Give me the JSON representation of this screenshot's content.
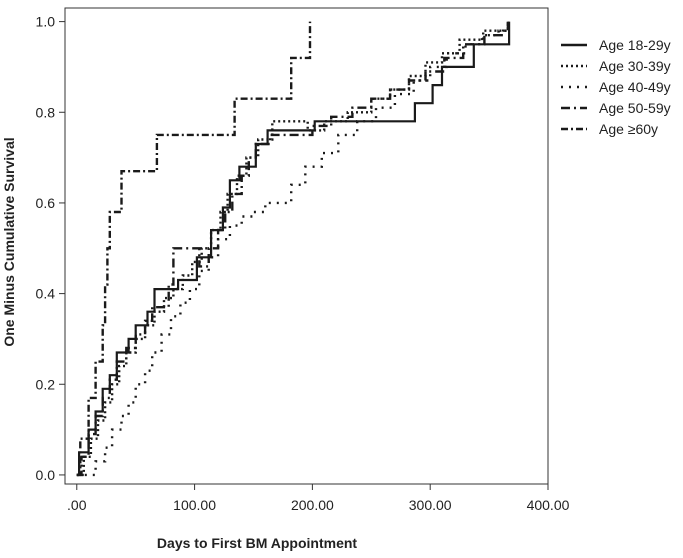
{
  "chart_data": {
    "type": "line",
    "step": true,
    "title": "",
    "xlabel": "Days to First BM Appointment",
    "ylabel": "One Minus Cumulative Survival",
    "xlim": [
      -10,
      400
    ],
    "ylim": [
      -0.02,
      1.03
    ],
    "xticks": [
      0,
      100,
      200,
      300,
      400
    ],
    "xtick_labels": [
      ".00",
      "100.00",
      "200.00",
      "300.00",
      "400.00"
    ],
    "yticks": [
      0,
      0.2,
      0.4,
      0.6,
      0.8,
      1.0
    ],
    "ytick_labels": [
      "0.0",
      "0.2",
      "0.4",
      "0.6",
      "0.8",
      "1.0"
    ],
    "grid": false,
    "legend_position": "right",
    "series": [
      {
        "name": "Age 18-29y",
        "dash": "solid",
        "points": [
          [
            0,
            0.0
          ],
          [
            2,
            0.05
          ],
          [
            8,
            0.05
          ],
          [
            10,
            0.1
          ],
          [
            14,
            0.1
          ],
          [
            16,
            0.14
          ],
          [
            20,
            0.14
          ],
          [
            22,
            0.19
          ],
          [
            26,
            0.19
          ],
          [
            28,
            0.22
          ],
          [
            32,
            0.22
          ],
          [
            34,
            0.27
          ],
          [
            40,
            0.27
          ],
          [
            44,
            0.3
          ],
          [
            48,
            0.3
          ],
          [
            50,
            0.33
          ],
          [
            56,
            0.33
          ],
          [
            60,
            0.36
          ],
          [
            64,
            0.36
          ],
          [
            66,
            0.41
          ],
          [
            84,
            0.41
          ],
          [
            86,
            0.43
          ],
          [
            100,
            0.43
          ],
          [
            102,
            0.48
          ],
          [
            110,
            0.48
          ],
          [
            114,
            0.54
          ],
          [
            122,
            0.54
          ],
          [
            124,
            0.59
          ],
          [
            128,
            0.59
          ],
          [
            130,
            0.65
          ],
          [
            136,
            0.65
          ],
          [
            138,
            0.68
          ],
          [
            150,
            0.68
          ],
          [
            152,
            0.73
          ],
          [
            160,
            0.73
          ],
          [
            162,
            0.76
          ],
          [
            200,
            0.76
          ],
          [
            202,
            0.78
          ],
          [
            285,
            0.78
          ],
          [
            287,
            0.82
          ],
          [
            300,
            0.82
          ],
          [
            302,
            0.86
          ],
          [
            308,
            0.86
          ],
          [
            310,
            0.9
          ],
          [
            335,
            0.9
          ],
          [
            337,
            0.95
          ],
          [
            365,
            0.95
          ],
          [
            367,
            1.0
          ]
        ]
      },
      {
        "name": "Age 30-39y",
        "dash": "dotted",
        "points": [
          [
            0,
            0.0
          ],
          [
            6,
            0.04
          ],
          [
            12,
            0.08
          ],
          [
            18,
            0.12
          ],
          [
            24,
            0.16
          ],
          [
            30,
            0.2
          ],
          [
            36,
            0.24
          ],
          [
            42,
            0.27
          ],
          [
            50,
            0.3
          ],
          [
            58,
            0.33
          ],
          [
            66,
            0.36
          ],
          [
            74,
            0.39
          ],
          [
            82,
            0.41
          ],
          [
            90,
            0.44
          ],
          [
            98,
            0.47
          ],
          [
            106,
            0.5
          ],
          [
            114,
            0.54
          ],
          [
            122,
            0.58
          ],
          [
            128,
            0.62
          ],
          [
            136,
            0.66
          ],
          [
            144,
            0.7
          ],
          [
            154,
            0.74
          ],
          [
            166,
            0.78
          ],
          [
            182,
            0.78
          ],
          [
            196,
            0.76
          ],
          [
            210,
            0.78
          ],
          [
            230,
            0.8
          ],
          [
            250,
            0.83
          ],
          [
            266,
            0.85
          ],
          [
            282,
            0.88
          ],
          [
            296,
            0.91
          ],
          [
            310,
            0.93
          ],
          [
            325,
            0.96
          ],
          [
            345,
            0.98
          ],
          [
            362,
            0.98
          ],
          [
            366,
            1.0
          ]
        ]
      },
      {
        "name": "Age 40-49y",
        "dash": "sparse-dot",
        "points": [
          [
            0,
            0.0
          ],
          [
            10,
            0.0
          ],
          [
            16,
            0.03
          ],
          [
            24,
            0.06
          ],
          [
            30,
            0.1
          ],
          [
            38,
            0.13
          ],
          [
            44,
            0.16
          ],
          [
            50,
            0.2
          ],
          [
            58,
            0.23
          ],
          [
            64,
            0.27
          ],
          [
            72,
            0.31
          ],
          [
            80,
            0.35
          ],
          [
            88,
            0.38
          ],
          [
            96,
            0.41
          ],
          [
            104,
            0.45
          ],
          [
            112,
            0.48
          ],
          [
            120,
            0.52
          ],
          [
            130,
            0.55
          ],
          [
            140,
            0.57
          ],
          [
            150,
            0.58
          ],
          [
            160,
            0.6
          ],
          [
            172,
            0.6
          ],
          [
            182,
            0.64
          ],
          [
            194,
            0.68
          ],
          [
            208,
            0.71
          ],
          [
            222,
            0.75
          ],
          [
            238,
            0.78
          ],
          [
            254,
            0.81
          ],
          [
            270,
            0.84
          ],
          [
            286,
            0.87
          ],
          [
            300,
            0.9
          ],
          [
            314,
            0.93
          ],
          [
            330,
            0.95
          ],
          [
            344,
            0.97
          ],
          [
            358,
            0.98
          ],
          [
            366,
            1.0
          ]
        ]
      },
      {
        "name": "Age 50-59y",
        "dash": "dash-dot",
        "points": [
          [
            0,
            0.0
          ],
          [
            4,
            0.04
          ],
          [
            10,
            0.09
          ],
          [
            16,
            0.13
          ],
          [
            22,
            0.17
          ],
          [
            28,
            0.21
          ],
          [
            34,
            0.25
          ],
          [
            42,
            0.28
          ],
          [
            50,
            0.31
          ],
          [
            58,
            0.34
          ],
          [
            64,
            0.37
          ],
          [
            70,
            0.37
          ],
          [
            78,
            0.42
          ],
          [
            82,
            0.5
          ],
          [
            100,
            0.5
          ],
          [
            104,
            0.46
          ],
          [
            112,
            0.5
          ],
          [
            120,
            0.54
          ],
          [
            126,
            0.58
          ],
          [
            132,
            0.62
          ],
          [
            140,
            0.66
          ],
          [
            146,
            0.7
          ],
          [
            152,
            0.73
          ],
          [
            160,
            0.73
          ],
          [
            164,
            0.75
          ],
          [
            184,
            0.75
          ],
          [
            200,
            0.77
          ],
          [
            216,
            0.79
          ],
          [
            234,
            0.81
          ],
          [
            250,
            0.83
          ],
          [
            266,
            0.85
          ],
          [
            282,
            0.87
          ],
          [
            296,
            0.89
          ],
          [
            312,
            0.92
          ],
          [
            328,
            0.95
          ],
          [
            346,
            0.97
          ],
          [
            362,
            0.98
          ],
          [
            366,
            1.0
          ]
        ]
      },
      {
        "name": "Age ≥60y",
        "dash": "long-dash-dot",
        "points": [
          [
            0,
            0.0
          ],
          [
            3,
            0.08
          ],
          [
            8,
            0.08
          ],
          [
            10,
            0.17
          ],
          [
            14,
            0.17
          ],
          [
            16,
            0.25
          ],
          [
            20,
            0.25
          ],
          [
            22,
            0.33
          ],
          [
            24,
            0.42
          ],
          [
            26,
            0.5
          ],
          [
            28,
            0.58
          ],
          [
            36,
            0.58
          ],
          [
            38,
            0.67
          ],
          [
            66,
            0.67
          ],
          [
            68,
            0.75
          ],
          [
            132,
            0.75
          ],
          [
            134,
            0.83
          ],
          [
            180,
            0.83
          ],
          [
            182,
            0.92
          ],
          [
            196,
            0.92
          ],
          [
            198,
            1.0
          ]
        ]
      }
    ]
  }
}
